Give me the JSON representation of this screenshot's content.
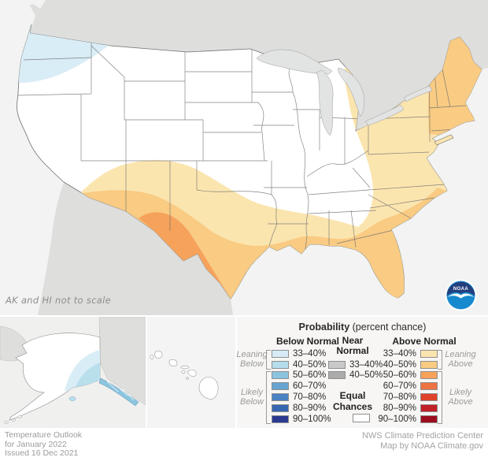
{
  "map": {
    "note": "AK and HI not to scale",
    "logo_text": "NOAA",
    "colors": {
      "ocean": "#F2F3F2",
      "foreign_land": "#DEDEDD",
      "lakes": "#E2E3E3",
      "equal_chances": "#FFFFFF",
      "state_border": "#6E6E6E",
      "below_33_40": "#D9EDF6",
      "below_40_50": "#B9DFED",
      "below_50_60": "#8CC5DF",
      "above_33_40": "#FBE5AF",
      "above_40_50": "#F9CB83",
      "above_50_60": "#F6A25B",
      "inset_ocean_ak": "#F0F0EF",
      "inset_ocean_hi": "#F4F4F4",
      "logo_navy": "#243F7D",
      "logo_blue": "#1789CE"
    }
  },
  "legend": {
    "title": "Probability",
    "title_suffix": "(percent chance)",
    "below": {
      "header": "Below Normal",
      "rows": [
        {
          "range": "33–40%",
          "color": "#D6EBF5"
        },
        {
          "range": "40–50%",
          "color": "#B5DDEB"
        },
        {
          "range": "50–60%",
          "color": "#8CC4DF"
        },
        {
          "range": "60–70%",
          "color": "#67A4D1"
        },
        {
          "range": "70–80%",
          "color": "#4A82C3"
        },
        {
          "range": "80–90%",
          "color": "#3767B1"
        },
        {
          "range": "90–100%",
          "color": "#2B3990"
        }
      ],
      "groups": [
        {
          "label_line1": "Leaning",
          "label_line2": "Below"
        },
        {
          "label_line1": "Likely",
          "label_line2": "Below"
        }
      ]
    },
    "near": {
      "header_line1": "Near",
      "header_line2": "Normal",
      "rows": [
        {
          "range": "33–40%",
          "color": "#C9C9C9"
        },
        {
          "range": "40–50%",
          "color": "#ABABAB"
        }
      ],
      "equal_line1": "Equal",
      "equal_line2": "Chances",
      "equal_color": "#FFFFFF"
    },
    "above": {
      "header": "Above Normal",
      "rows": [
        {
          "range": "33–40%",
          "color": "#FBE5AF"
        },
        {
          "range": "40–50%",
          "color": "#F9CB83"
        },
        {
          "range": "50–60%",
          "color": "#F6A25B"
        },
        {
          "range": "60–70%",
          "color": "#EE7342"
        },
        {
          "range": "70–80%",
          "color": "#DE422B"
        },
        {
          "range": "80–90%",
          "color": "#C02026"
        },
        {
          "range": "90–100%",
          "color": "#9C0D1F"
        }
      ],
      "groups": [
        {
          "label_line1": "Leaning",
          "label_line2": "Above"
        },
        {
          "label_line1": "Likely",
          "label_line2": "Above"
        }
      ]
    }
  },
  "footer": {
    "left_lines": [
      "Temperature Outlook",
      "for January 2022",
      "Issued 16 Dec 2021"
    ],
    "right_lines": [
      "NWS Climate Prediction Center",
      "Map by NOAA Climate.gov"
    ]
  }
}
